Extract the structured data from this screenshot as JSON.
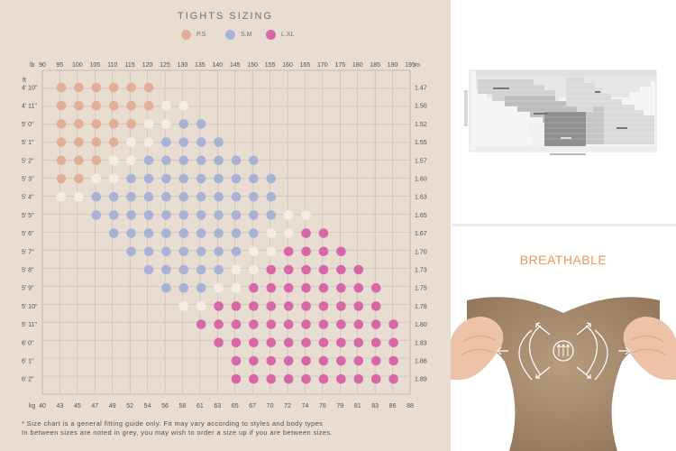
{
  "tights_chart": {
    "title": "TIGHTS SIZING",
    "legend": [
      {
        "label": "P.S",
        "color": "#e4ad98"
      },
      {
        "label": "S.M",
        "color": "#a8b2d6"
      },
      {
        "label": "L.XL",
        "color": "#d767a8"
      }
    ],
    "in_between_color": "#f4ede6",
    "lb_unit": "lb",
    "kg_unit": "kg",
    "ft_unit": "ft",
    "m_unit": "m",
    "lb_ticks": [
      "90",
      "95",
      "100",
      "105",
      "110",
      "115",
      "120",
      "125",
      "130",
      "135",
      "140",
      "145",
      "150",
      "155",
      "160",
      "165",
      "170",
      "175",
      "180",
      "185",
      "190",
      "195"
    ],
    "kg_ticks": [
      "40",
      "43",
      "45",
      "47",
      "49",
      "52",
      "54",
      "56",
      "58",
      "61",
      "63",
      "65",
      "67",
      "70",
      "72",
      "74",
      "76",
      "79",
      "81",
      "83",
      "86",
      "88"
    ],
    "height_ft": [
      "4' 10\"",
      "4' 11\"",
      "5' 0\"",
      "5' 1\"",
      "5' 2\"",
      "5' 3\"",
      "5' 4\"",
      "5' 5\"",
      "5' 6\"",
      "5' 7\"",
      "5' 8\"",
      "5' 9\"",
      "5' 10\"",
      "5' 11\"",
      "6' 0\"",
      "6' 1\"",
      "6' 2\""
    ],
    "height_m": [
      "1.47",
      "1.50",
      "1.52",
      "1.55",
      "1.57",
      "1.60",
      "1.63",
      "1.65",
      "1.67",
      "1.70",
      "1.73",
      "1.75",
      "1.78",
      "1.80",
      "1.83",
      "1.86",
      "1.89"
    ],
    "note_line1": "* Size chart is a general fitting guide only. Fit may vary according to styles and body types",
    "note_line2": "In between sizes are noted in grey, you may wish to order a size up if you are between sizes."
  },
  "chart_data": {
    "type": "scatter",
    "title": "TIGHTS SIZING",
    "x_label": "lb",
    "y_label": "ft",
    "x_ticks": [
      "90",
      "95",
      "100",
      "105",
      "110",
      "115",
      "120",
      "125",
      "130",
      "135",
      "140",
      "145",
      "150",
      "155",
      "160",
      "165",
      "170",
      "175",
      "180",
      "185",
      "190",
      "195"
    ],
    "y_ticks": [
      "4' 10\"",
      "4' 11\"",
      "5' 0\"",
      "5' 1\"",
      "5' 2\"",
      "5' 3\"",
      "5' 4\"",
      "5' 5\"",
      "5' 6\"",
      "5' 7\"",
      "5' 8\"",
      "5' 9\"",
      "5' 10\"",
      "5' 11\"",
      "6' 0\"",
      "6' 1\"",
      "6' 2\""
    ],
    "legend": [
      "P.S",
      "S.M",
      "L.XL"
    ],
    "rows": [
      {
        "height": "4' 10\"",
        "cells": "PPPPPP"
      },
      {
        "height": "4' 11\"",
        "cells": "PPPPPPWW"
      },
      {
        "height": "5' 0\"",
        "cells": "PPPPPWWSS"
      },
      {
        "height": "5' 1\"",
        "cells": "PPPPWWSSSS"
      },
      {
        "height": "5' 2\"",
        "cells": "PPPWWSSSSSSS"
      },
      {
        "height": "5' 3\"",
        "cells": "PPWWSSSSSSSSS"
      },
      {
        "height": "5' 4\"",
        "cells": "WWSSSSSSSSSSS"
      },
      {
        "height": "5' 5\"",
        "cells": "SSSSSSSSSSSWW"
      },
      {
        "height": "5' 6\"",
        "cells": "SSSSSSSSSWWLL"
      },
      {
        "height": "5' 7\"",
        "cells": "SSSSSSSWWLLLL"
      },
      {
        "height": "5' 8\"",
        "cells": "SSSSSWWLLLLLL"
      },
      {
        "height": "5' 9\"",
        "cells": "SSSWWLLLLLLLL"
      },
      {
        "height": "5' 10\"",
        "cells": "WWLLLLLLLLLL"
      },
      {
        "height": "5' 11\"",
        "cells": "LLLLLLLLLLLL"
      },
      {
        "height": "6' 0\"",
        "cells": "LLLLLLLLLLL"
      },
      {
        "height": "6' 1\"",
        "cells": "LLLLLLLLLL"
      },
      {
        "height": "6' 2\"",
        "cells": "LLLLLLLLLL"
      }
    ],
    "row_start_columns": [
      1,
      1,
      1,
      1,
      1,
      1,
      1,
      3,
      4,
      5,
      6,
      7,
      8,
      9,
      10,
      11,
      11
    ]
  },
  "thumbnail_chart": {
    "regions": [
      {
        "label": "",
        "color": "#e9e9e9"
      },
      {
        "label": "",
        "color": "#c9c9c9"
      },
      {
        "label": "",
        "color": "#9a9a9a"
      },
      {
        "label": "",
        "color": "#6f6f6f"
      },
      {
        "label": "",
        "color": "#c2c2c2"
      }
    ]
  },
  "breathable": {
    "title": "BREATHABLE",
    "accent": "#e69a5f",
    "fabric_color": "#a58a6c",
    "skin_color": "#ecc3a8",
    "badge_icon": "ventilation-icon"
  }
}
